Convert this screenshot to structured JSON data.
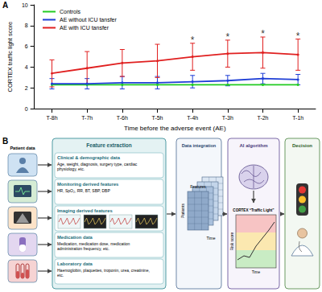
{
  "chart_data": {
    "type": "line",
    "panel_label": "A",
    "x_label": "Time before the adverse event (AE)",
    "y_label": "CORTEX traffic light score",
    "categories": [
      "T-8h",
      "T-7h",
      "T-6h",
      "T-5h",
      "T-4h",
      "T-3h",
      "T-2h",
      "T-1h"
    ],
    "series": [
      {
        "name": "Controls",
        "color": "#22cc22",
        "values": [
          2.3,
          2.3,
          2.3,
          2.3,
          2.3,
          2.3,
          2.3,
          2.3
        ]
      },
      {
        "name": "AE without ICU tansfer",
        "color": "#1f3fd6",
        "values": [
          2.4,
          2.4,
          2.5,
          2.5,
          2.6,
          2.7,
          2.9,
          2.8
        ],
        "errors": [
          0.5,
          0.5,
          0.6,
          0.6,
          0.6,
          0.5,
          0.5,
          0.5
        ]
      },
      {
        "name": "AE with ICU tansfer",
        "color": "#e02020",
        "values": [
          3.4,
          3.9,
          4.4,
          4.6,
          5.0,
          5.3,
          5.4,
          5.2
        ],
        "errors": [
          1.3,
          1.6,
          1.3,
          1.6,
          1.3,
          1.3,
          1.5,
          1.5
        ]
      }
    ],
    "annotations": [
      {
        "text": "*",
        "category": "T-4h"
      },
      {
        "text": "*",
        "category": "T-3h"
      },
      {
        "text": "*",
        "category": "T-2h"
      },
      {
        "text": "*",
        "category": "T-1h"
      }
    ],
    "ylim": [
      0,
      10
    ],
    "yticks": [
      0,
      2,
      4,
      6,
      8,
      10
    ],
    "grid": false,
    "legend": "top-left"
  },
  "diagram": {
    "panel_label": "B",
    "patient_data": {
      "title": "Patient data"
    },
    "feature_extraction": {
      "title": "Feature extraction",
      "items": [
        {
          "title": "Clinical & demographic data",
          "text": "Age, weight, diagnosis, surgery type, cardiac physiology, etc."
        },
        {
          "title": "Monitoring derived features",
          "text": "HR, SpO₂, RR, BT, SBP, DBP"
        },
        {
          "title": "Imaging derived features"
        },
        {
          "title": "Medication data",
          "text": "Medication, medication dose, medication administration frequency, etc."
        },
        {
          "title": "Laboratory data",
          "text": "Haemoglobin, plaquettes, troponin, urea, creatinine, etc."
        }
      ]
    },
    "data_integration": {
      "title": "Data integration",
      "axis_labels": [
        "Patients",
        "Features",
        "Time"
      ]
    },
    "ai_algorithm": {
      "title": "AI algorithm",
      "chart_title": "CORTEX “Traffic Light”",
      "y_label": "Risk score",
      "x_label": "Time"
    },
    "decision": {
      "title": "Decision"
    }
  }
}
